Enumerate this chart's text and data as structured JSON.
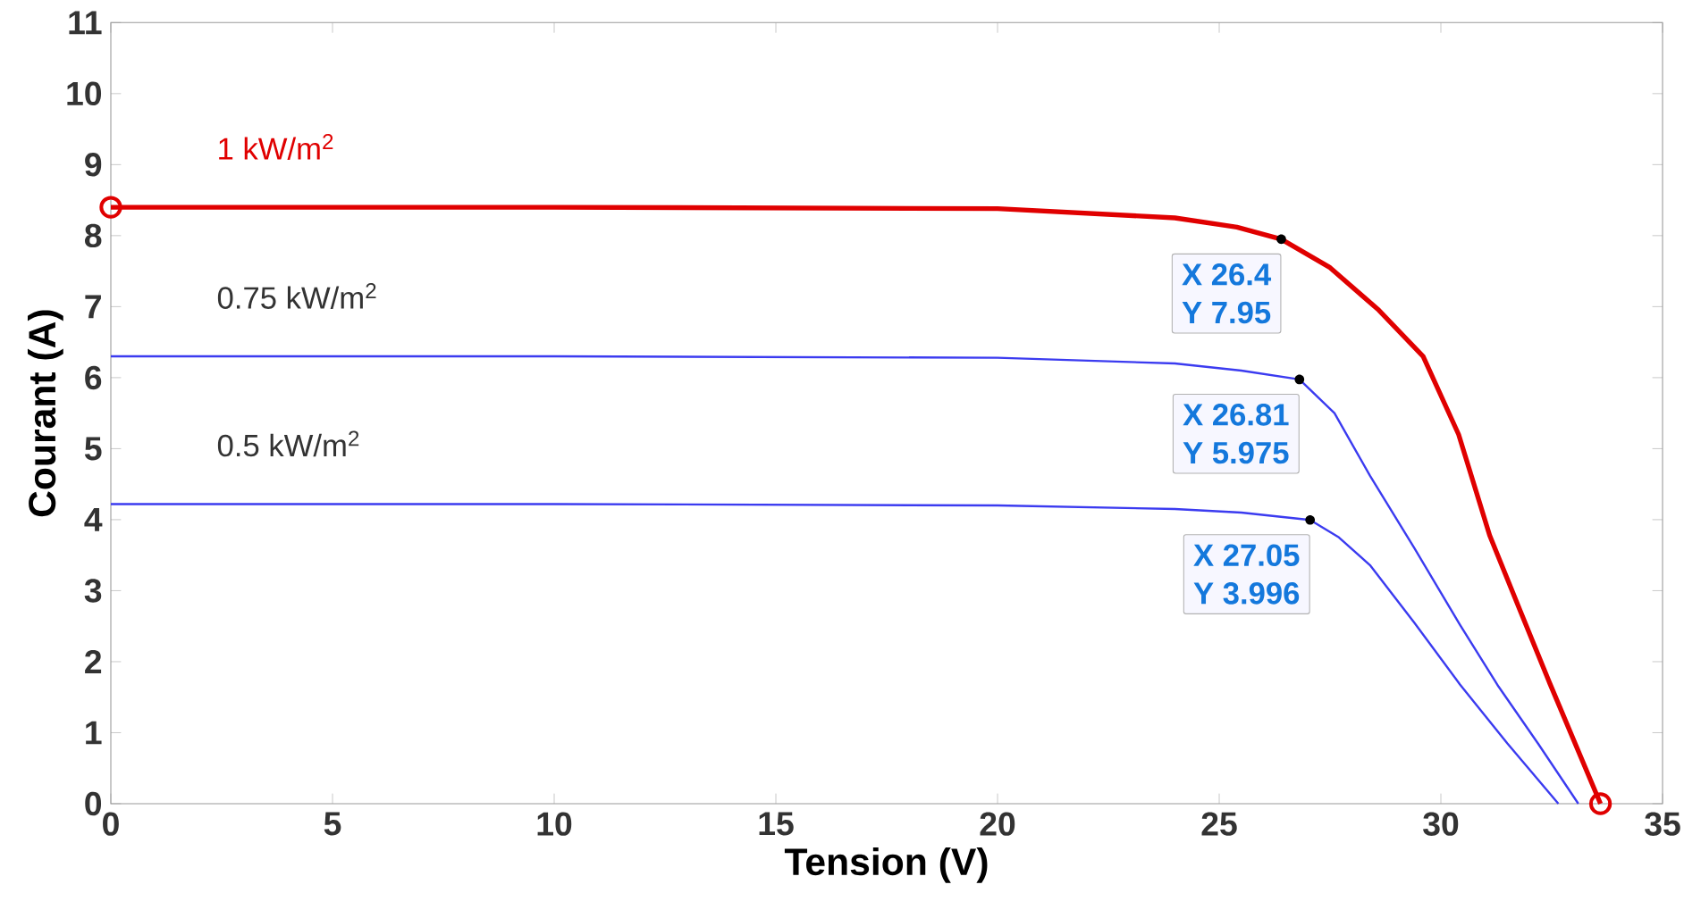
{
  "chart_data": {
    "type": "line",
    "xlabel": "Tension (V)",
    "ylabel": "Courant (A)",
    "xlim": [
      0,
      35
    ],
    "ylim": [
      0,
      11
    ],
    "xticks": [
      0,
      5,
      10,
      15,
      20,
      25,
      30,
      35
    ],
    "yticks": [
      0,
      1,
      2,
      3,
      4,
      5,
      6,
      7,
      8,
      9,
      10,
      11
    ],
    "grid": false,
    "marker": "none",
    "line_style": "solid",
    "series": [
      {
        "name": "1 kW/m$^{2}$",
        "color": "#e00000",
        "x": [
          0,
          10,
          20,
          24,
          25.4,
          26.4,
          27.5,
          28.6,
          29.6,
          30.4,
          31.1,
          31.8,
          32.46,
          33.6
        ],
        "values": [
          8.4,
          8.4,
          8.38,
          8.25,
          8.12,
          7.95,
          7.55,
          6.95,
          6.3,
          5.2,
          3.78,
          2.7,
          1.69,
          0
        ]
      },
      {
        "name": "0.75 kW/m$^{2}$",
        "color": "#3b3bf0",
        "x": [
          0,
          10,
          20,
          24,
          25.5,
          26.81,
          27.6,
          28.4,
          29.4,
          30.43,
          31.3,
          32.2,
          33.1
        ],
        "values": [
          6.3,
          6.3,
          6.28,
          6.2,
          6.1,
          5.975,
          5.5,
          4.62,
          3.6,
          2.52,
          1.65,
          0.84,
          0
        ]
      },
      {
        "name": "0.5 kW/m$^{2}$",
        "color": "#3b3bf0",
        "x": [
          0,
          10,
          20,
          24,
          25.5,
          27.05,
          27.7,
          28.4,
          29.4,
          30.43,
          31.5,
          32.65
        ],
        "values": [
          4.22,
          4.22,
          4.2,
          4.15,
          4.1,
          3.996,
          3.75,
          3.36,
          2.55,
          1.68,
          0.85,
          0
        ]
      },
      {
        "type": "scatter",
        "color": "#e00000",
        "marker": "circle",
        "x": [
          0,
          33.6
        ],
        "values": [
          8.4,
          0
        ]
      }
    ],
    "annotations": [
      {
        "text": "X 26.4",
        "x": 26.4,
        "y": 7.95
      },
      "Y 7.95",
      {
        "text": "X 26.81",
        "x": 26.81,
        "y": 5.975
      },
      "Y 5.975",
      {
        "text": "X 27.05",
        "x": 27.05,
        "y": 3.996
      },
      "Y 3.996"
    ]
  }
}
